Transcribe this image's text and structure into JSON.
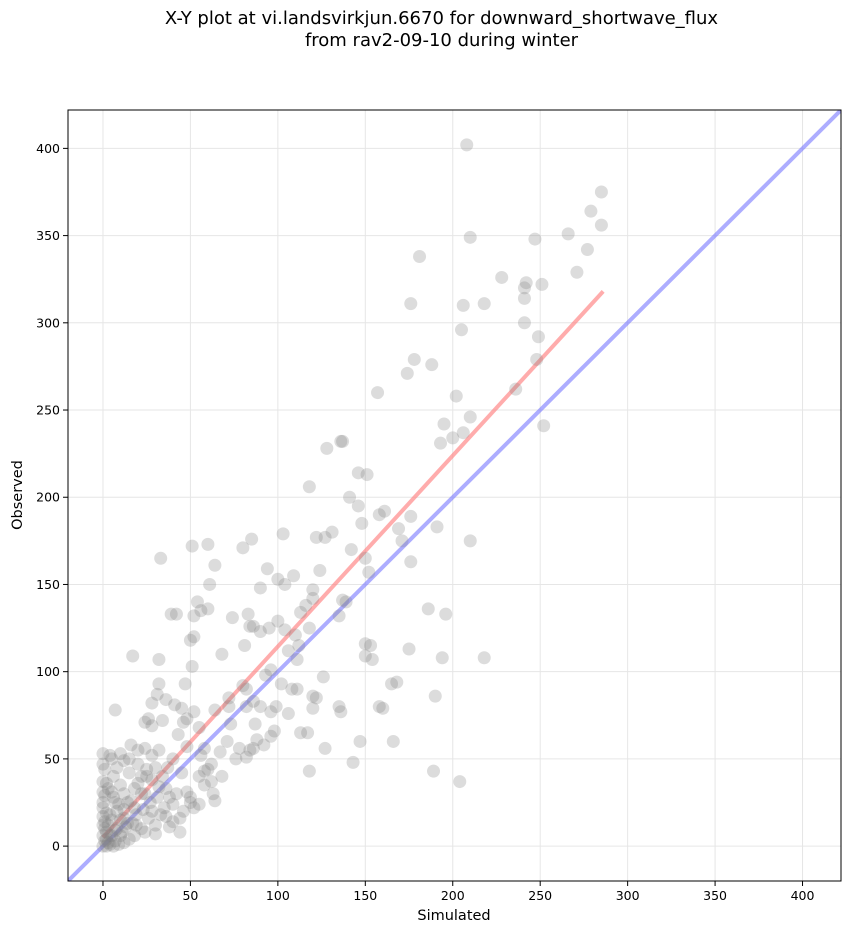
{
  "chart_data": {
    "type": "scatter",
    "title_line1": "X-Y plot at vi.landsvirkjun.6670 for downward_shortwave_flux",
    "title_line2": "from rav2-09-10 during winter",
    "xlabel": "Simulated",
    "ylabel": "Observed",
    "xlim": [
      -20,
      422
    ],
    "ylim": [
      -20,
      422
    ],
    "x_ticks": [
      0,
      50,
      100,
      150,
      200,
      250,
      300,
      350,
      400
    ],
    "y_ticks": [
      0,
      50,
      100,
      150,
      200,
      250,
      300,
      350,
      400
    ],
    "grid": true,
    "point_color": "#808080",
    "identity_line_color": "#7777ff",
    "fit_line_color": "#ff7f7f",
    "identity_line": {
      "from": [
        -20,
        -20
      ],
      "to": [
        422,
        422
      ]
    },
    "fit_line": {
      "from": [
        0,
        5
      ],
      "to": [
        286,
        318
      ]
    },
    "points": [
      [
        208,
        402
      ],
      [
        285,
        375
      ],
      [
        279,
        364
      ],
      [
        285,
        356
      ],
      [
        266,
        351
      ],
      [
        210,
        349
      ],
      [
        247,
        348
      ],
      [
        277,
        342
      ],
      [
        181,
        338
      ],
      [
        271,
        329
      ],
      [
        228,
        326
      ],
      [
        242,
        323
      ],
      [
        251,
        322
      ],
      [
        241,
        320
      ],
      [
        241,
        314
      ],
      [
        176,
        311
      ],
      [
        218,
        311
      ],
      [
        206,
        310
      ],
      [
        241,
        300
      ],
      [
        205,
        296
      ],
      [
        249,
        292
      ],
      [
        248,
        279
      ],
      [
        178,
        279
      ],
      [
        174,
        271
      ],
      [
        188,
        276
      ],
      [
        236,
        262
      ],
      [
        157,
        260
      ],
      [
        202,
        258
      ],
      [
        195,
        242
      ],
      [
        210,
        246
      ],
      [
        252,
        241
      ],
      [
        193,
        231
      ],
      [
        206,
        237
      ],
      [
        200,
        234
      ],
      [
        128,
        228
      ],
      [
        136,
        232
      ],
      [
        137,
        232
      ],
      [
        146,
        214
      ],
      [
        151,
        213
      ],
      [
        118,
        206
      ],
      [
        141,
        200
      ],
      [
        146,
        195
      ],
      [
        158,
        190
      ],
      [
        161,
        192
      ],
      [
        148,
        185
      ],
      [
        176,
        189
      ],
      [
        169,
        182
      ],
      [
        191,
        183
      ],
      [
        131,
        180
      ],
      [
        103,
        179
      ],
      [
        122,
        177
      ],
      [
        127,
        177
      ],
      [
        33,
        165
      ],
      [
        51,
        172
      ],
      [
        60,
        173
      ],
      [
        80,
        171
      ],
      [
        85,
        176
      ],
      [
        64,
        161
      ],
      [
        94,
        159
      ],
      [
        150,
        165
      ],
      [
        176,
        163
      ],
      [
        171,
        175
      ],
      [
        210,
        175
      ],
      [
        152,
        157
      ],
      [
        109,
        155
      ],
      [
        142,
        170
      ],
      [
        124,
        158
      ],
      [
        120,
        147
      ],
      [
        104,
        150
      ],
      [
        100,
        153
      ],
      [
        90,
        148
      ],
      [
        61,
        150
      ],
      [
        56,
        135
      ],
      [
        54,
        140
      ],
      [
        60,
        136
      ],
      [
        52,
        132
      ],
      [
        42,
        133
      ],
      [
        84,
        126
      ],
      [
        95,
        125
      ],
      [
        116,
        138
      ],
      [
        74,
        131
      ],
      [
        113,
        134
      ],
      [
        137,
        141
      ],
      [
        139,
        140
      ],
      [
        120,
        142
      ],
      [
        100,
        129
      ],
      [
        86,
        126
      ],
      [
        110,
        121
      ],
      [
        135,
        132
      ],
      [
        83,
        133
      ],
      [
        150,
        116
      ],
      [
        112,
        115
      ],
      [
        118,
        125
      ],
      [
        186,
        136
      ],
      [
        196,
        133
      ],
      [
        218,
        108
      ],
      [
        153,
        115
      ],
      [
        150,
        109
      ],
      [
        154,
        107
      ],
      [
        175,
        113
      ],
      [
        194,
        108
      ],
      [
        111,
        107
      ],
      [
        106,
        112
      ],
      [
        52,
        120
      ],
      [
        50,
        118
      ],
      [
        51,
        103
      ],
      [
        39,
        133
      ],
      [
        32,
        107
      ],
      [
        17,
        109
      ],
      [
        81,
        115
      ],
      [
        90,
        123
      ],
      [
        104,
        124
      ],
      [
        126,
        97
      ],
      [
        96,
        101
      ],
      [
        93,
        98
      ],
      [
        102,
        93
      ],
      [
        111,
        90
      ],
      [
        120,
        86
      ],
      [
        120,
        79
      ],
      [
        72,
        85
      ],
      [
        80,
        92
      ],
      [
        82,
        90
      ],
      [
        68,
        110
      ],
      [
        122,
        85
      ],
      [
        135,
        80
      ],
      [
        136,
        77
      ],
      [
        147,
        60
      ],
      [
        158,
        80
      ],
      [
        160,
        79
      ],
      [
        165,
        93
      ],
      [
        168,
        94
      ],
      [
        190,
        86
      ],
      [
        166,
        60
      ],
      [
        189,
        43
      ],
      [
        204,
        37
      ],
      [
        127,
        56
      ],
      [
        118,
        43
      ],
      [
        143,
        48
      ],
      [
        113,
        65
      ],
      [
        117,
        65
      ],
      [
        106,
        76
      ],
      [
        108,
        90
      ],
      [
        86,
        83
      ],
      [
        90,
        80
      ],
      [
        99,
        80
      ],
      [
        96,
        77
      ],
      [
        73,
        70
      ],
      [
        64,
        78
      ],
      [
        72,
        80
      ],
      [
        82,
        80
      ],
      [
        87,
        70
      ],
      [
        98,
        66
      ],
      [
        92,
        58
      ],
      [
        88,
        61
      ],
      [
        96,
        63
      ],
      [
        52,
        77
      ],
      [
        55,
        68
      ],
      [
        48,
        73
      ],
      [
        31,
        87
      ],
      [
        36,
        84
      ],
      [
        28,
        82
      ],
      [
        34,
        72
      ],
      [
        26,
        73
      ],
      [
        24,
        71
      ],
      [
        28,
        69
      ],
      [
        41,
        81
      ],
      [
        45,
        79
      ],
      [
        46,
        71
      ],
      [
        47,
        93
      ],
      [
        32,
        93
      ],
      [
        7,
        78
      ],
      [
        43,
        64
      ],
      [
        48,
        57
      ],
      [
        58,
        56
      ],
      [
        78,
        56
      ],
      [
        84,
        55
      ],
      [
        86,
        56
      ],
      [
        82,
        51
      ],
      [
        76,
        50
      ],
      [
        62,
        47
      ],
      [
        56,
        52
      ],
      [
        67,
        54
      ],
      [
        71,
        60
      ],
      [
        60,
        44
      ],
      [
        68,
        40
      ],
      [
        62,
        37
      ],
      [
        58,
        43
      ],
      [
        40,
        50
      ],
      [
        32,
        55
      ],
      [
        28,
        52
      ],
      [
        24,
        56
      ],
      [
        16,
        58
      ],
      [
        20,
        47
      ],
      [
        12,
        49
      ],
      [
        8,
        45
      ],
      [
        5,
        50
      ],
      [
        0,
        53
      ],
      [
        0,
        47
      ],
      [
        0,
        37
      ],
      [
        0,
        31
      ],
      [
        0,
        25
      ],
      [
        2,
        19
      ],
      [
        1,
        14
      ],
      [
        2,
        8
      ],
      [
        1,
        3
      ],
      [
        3,
        2
      ],
      [
        5,
        6
      ],
      [
        8,
        10
      ],
      [
        10,
        15
      ],
      [
        12,
        21
      ],
      [
        14,
        25
      ],
      [
        6,
        28
      ],
      [
        18,
        33
      ],
      [
        20,
        36
      ],
      [
        22,
        40
      ],
      [
        15,
        42
      ],
      [
        10,
        35
      ],
      [
        25,
        40
      ],
      [
        30,
        45
      ],
      [
        34,
        40
      ],
      [
        36,
        33
      ],
      [
        38,
        28
      ],
      [
        40,
        24
      ],
      [
        42,
        30
      ],
      [
        48,
        31
      ],
      [
        50,
        25
      ],
      [
        52,
        22
      ],
      [
        44,
        16
      ],
      [
        40,
        14
      ],
      [
        36,
        17
      ],
      [
        30,
        12
      ],
      [
        26,
        16
      ],
      [
        22,
        10
      ],
      [
        18,
        6
      ],
      [
        15,
        4
      ],
      [
        12,
        2
      ],
      [
        9,
        1
      ],
      [
        6,
        0
      ],
      [
        4,
        1
      ],
      [
        2,
        0
      ],
      [
        7,
        3
      ],
      [
        11,
        8
      ],
      [
        14,
        13
      ],
      [
        19,
        18
      ],
      [
        23,
        21
      ],
      [
        27,
        25
      ],
      [
        31,
        28
      ],
      [
        22,
        30
      ],
      [
        16,
        26
      ],
      [
        9,
        24
      ],
      [
        4,
        18
      ],
      [
        1,
        10
      ],
      [
        3,
        12
      ],
      [
        5,
        15
      ],
      [
        8,
        20
      ],
      [
        12,
        30
      ],
      [
        6,
        40
      ],
      [
        3,
        33
      ],
      [
        1,
        44
      ],
      [
        4,
        52
      ],
      [
        10,
        53
      ],
      [
        15,
        50
      ],
      [
        20,
        55
      ],
      [
        25,
        44
      ],
      [
        28,
        38
      ],
      [
        32,
        34
      ],
      [
        37,
        45
      ],
      [
        45,
        42
      ],
      [
        55,
        40
      ],
      [
        58,
        35
      ],
      [
        63,
        30
      ],
      [
        64,
        26
      ],
      [
        55,
        24
      ],
      [
        50,
        28
      ],
      [
        46,
        20
      ],
      [
        35,
        22
      ],
      [
        33,
        18
      ],
      [
        28,
        20
      ],
      [
        17,
        13
      ],
      [
        13,
        11
      ],
      [
        10,
        6
      ],
      [
        7,
        9
      ],
      [
        4,
        6
      ],
      [
        2,
        4
      ],
      [
        0,
        0
      ],
      [
        0,
        6
      ],
      [
        0,
        12
      ],
      [
        0,
        17
      ],
      [
        0,
        22
      ],
      [
        1,
        29
      ],
      [
        2,
        36
      ],
      [
        5,
        31
      ],
      [
        7,
        25
      ],
      [
        19,
        12
      ],
      [
        24,
        8
      ],
      [
        30,
        7
      ],
      [
        38,
        11
      ],
      [
        44,
        8
      ],
      [
        24,
        30
      ],
      [
        18,
        22
      ],
      [
        12,
        16
      ]
    ]
  }
}
